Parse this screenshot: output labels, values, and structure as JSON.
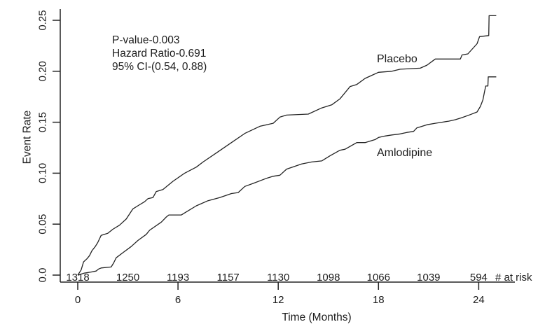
{
  "figure": {
    "background": "#ffffff",
    "line_color": "#232323",
    "text_color": "#1c1c1c"
  },
  "chart_data": {
    "type": "line",
    "title": "",
    "xlabel": "Time (Months)",
    "ylabel": "Event Rate",
    "xlim": [
      0,
      25.5
    ],
    "ylim": [
      0,
      0.262
    ],
    "grid": false,
    "legend_position": "inline-curve-labels",
    "annotation_lines": [
      "P-value-0.003",
      "Hazard Ratio-0.691",
      "95% CI-(0.54, 0.88)"
    ],
    "x_ticks": [
      {
        "label": "0",
        "value": 0
      },
      {
        "label": "6",
        "value": 6
      },
      {
        "label": "12",
        "value": 12
      },
      {
        "label": "18",
        "value": 18
      },
      {
        "label": "24",
        "value": 24
      }
    ],
    "y_ticks": [
      {
        "label": "0.0",
        "value": 0
      },
      {
        "label": "0.05",
        "value": 0.05
      },
      {
        "label": "0.10",
        "value": 0.1
      },
      {
        "label": "0.15",
        "value": 0.15
      },
      {
        "label": "0.20",
        "value": 0.2
      },
      {
        "label": "0.25",
        "value": 0.25
      }
    ],
    "series": [
      {
        "name": "Placebo",
        "points": [
          [
            0,
            0
          ],
          [
            0.2,
            0.005
          ],
          [
            0.35,
            0.013
          ],
          [
            0.55,
            0.016
          ],
          [
            0.7,
            0.019
          ],
          [
            0.85,
            0.024
          ],
          [
            1.05,
            0.028
          ],
          [
            1.2,
            0.032
          ],
          [
            1.4,
            0.039
          ],
          [
            1.8,
            0.041
          ],
          [
            2.1,
            0.045
          ],
          [
            2.5,
            0.049
          ],
          [
            2.9,
            0.055
          ],
          [
            3.3,
            0.065
          ],
          [
            3.7,
            0.069
          ],
          [
            4.0,
            0.072
          ],
          [
            4.2,
            0.075
          ],
          [
            4.5,
            0.076
          ],
          [
            4.7,
            0.082
          ],
          [
            5.1,
            0.084
          ],
          [
            5.7,
            0.092
          ],
          [
            6.4,
            0.1
          ],
          [
            7.1,
            0.106
          ],
          [
            7.5,
            0.111
          ],
          [
            8.4,
            0.121
          ],
          [
            9.2,
            0.13
          ],
          [
            10.0,
            0.139
          ],
          [
            10.9,
            0.146
          ],
          [
            11.7,
            0.149
          ],
          [
            12.1,
            0.155
          ],
          [
            12.5,
            0.157
          ],
          [
            13.8,
            0.158
          ],
          [
            14.6,
            0.164
          ],
          [
            15.2,
            0.167
          ],
          [
            15.7,
            0.173
          ],
          [
            16.3,
            0.185
          ],
          [
            16.7,
            0.187
          ],
          [
            17.2,
            0.193
          ],
          [
            17.6,
            0.196
          ],
          [
            18.0,
            0.199
          ],
          [
            18.8,
            0.2
          ],
          [
            19.3,
            0.202
          ],
          [
            20.5,
            0.203
          ],
          [
            20.9,
            0.206
          ],
          [
            21.4,
            0.212
          ],
          [
            22.9,
            0.212
          ],
          [
            23.0,
            0.216
          ],
          [
            23.35,
            0.217
          ],
          [
            23.9,
            0.227
          ],
          [
            24.05,
            0.234
          ],
          [
            24.6,
            0.235
          ],
          [
            24.62,
            0.2545
          ],
          [
            25.05,
            0.2545
          ]
        ]
      },
      {
        "name": "Amlodipine",
        "points": [
          [
            0,
            0
          ],
          [
            0.4,
            0.002
          ],
          [
            0.8,
            0.003
          ],
          [
            1.1,
            0.004
          ],
          [
            1.25,
            0.006
          ],
          [
            1.4,
            0.007
          ],
          [
            2.0,
            0.008
          ],
          [
            2.15,
            0.012
          ],
          [
            2.3,
            0.017
          ],
          [
            2.7,
            0.022
          ],
          [
            3.2,
            0.028
          ],
          [
            3.6,
            0.034
          ],
          [
            4.1,
            0.04
          ],
          [
            4.3,
            0.044
          ],
          [
            5.0,
            0.052
          ],
          [
            5.3,
            0.057
          ],
          [
            5.45,
            0.059
          ],
          [
            6.2,
            0.059
          ],
          [
            6.5,
            0.062
          ],
          [
            7.1,
            0.068
          ],
          [
            7.8,
            0.073
          ],
          [
            8.5,
            0.076
          ],
          [
            9.2,
            0.08
          ],
          [
            9.6,
            0.081
          ],
          [
            10.0,
            0.087
          ],
          [
            10.5,
            0.09
          ],
          [
            11.3,
            0.095
          ],
          [
            11.7,
            0.097
          ],
          [
            12.1,
            0.098
          ],
          [
            12.5,
            0.104
          ],
          [
            13.4,
            0.109
          ],
          [
            14.0,
            0.111
          ],
          [
            14.6,
            0.112
          ],
          [
            15.1,
            0.117
          ],
          [
            15.7,
            0.1225
          ],
          [
            16.0,
            0.1235
          ],
          [
            16.7,
            0.13
          ],
          [
            17.2,
            0.13
          ],
          [
            17.8,
            0.133
          ],
          [
            18.0,
            0.135
          ],
          [
            18.4,
            0.1365
          ],
          [
            18.8,
            0.1375
          ],
          [
            19.3,
            0.1385
          ],
          [
            19.7,
            0.14
          ],
          [
            20.1,
            0.141
          ],
          [
            20.3,
            0.1445
          ],
          [
            20.5,
            0.1455
          ],
          [
            20.9,
            0.1475
          ],
          [
            21.4,
            0.149
          ],
          [
            21.8,
            0.15
          ],
          [
            22.2,
            0.151
          ],
          [
            22.6,
            0.1525
          ],
          [
            23.0,
            0.1545
          ],
          [
            23.5,
            0.1575
          ],
          [
            23.9,
            0.16
          ],
          [
            24.1,
            0.1655
          ],
          [
            24.25,
            0.172
          ],
          [
            24.35,
            0.18
          ],
          [
            24.42,
            0.1855
          ],
          [
            24.55,
            0.1855
          ],
          [
            24.57,
            0.1945
          ],
          [
            25.05,
            0.1945
          ]
        ]
      }
    ],
    "at_risk": {
      "label": "# at risk",
      "times": [
        0,
        3,
        6,
        9,
        12,
        15,
        18,
        21,
        24
      ],
      "counts": [
        "1318",
        "1250",
        "1193",
        "1157",
        "1130",
        "1098",
        "1066",
        "1039",
        "594"
      ]
    }
  }
}
